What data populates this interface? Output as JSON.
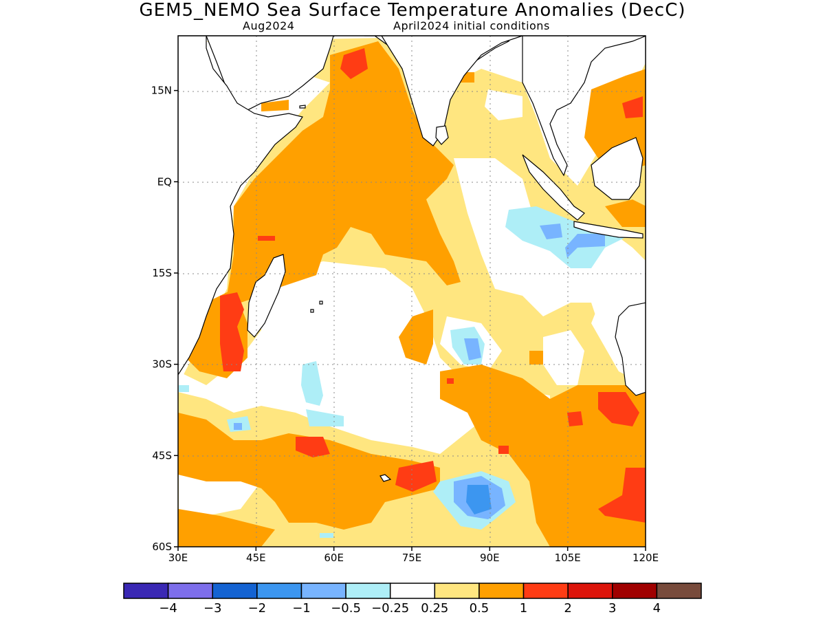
{
  "title": "GEM5_NEMO Sea Surface Temperature Anomalies (DecC)",
  "subtitle_left": "Aug2024",
  "subtitle_right": "April2024 initial conditions",
  "map": {
    "lon_range": [
      30,
      120
    ],
    "lat_range": [
      -60,
      24
    ],
    "lat_ticks": [
      {
        "value": 15,
        "label": "15N"
      },
      {
        "value": 0,
        "label": "EQ"
      },
      {
        "value": -15,
        "label": "15S"
      },
      {
        "value": -30,
        "label": "30S"
      },
      {
        "value": -45,
        "label": "45S"
      },
      {
        "value": -60,
        "label": "60S"
      }
    ],
    "lon_ticks": [
      {
        "value": 30,
        "label": "30E"
      },
      {
        "value": 45,
        "label": "45E"
      },
      {
        "value": 60,
        "label": "60E"
      },
      {
        "value": 75,
        "label": "75E"
      },
      {
        "value": 90,
        "label": "90E"
      },
      {
        "value": 105,
        "label": "105E"
      },
      {
        "value": 120,
        "label": "120E"
      }
    ],
    "grid": "dotted",
    "colors": {
      "land_fill": "#ffffff",
      "coast": "#000000",
      "pale_yellow": "#ffe680",
      "orange": "#ffa000",
      "red_orange": "#ff3c14",
      "light_blue": "#aeeef7",
      "blue": "#78b4ff",
      "mid_blue": "#3c96f0"
    }
  },
  "colorbar": {
    "colors": [
      "#3a28b4",
      "#7d6eeb",
      "#1463d2",
      "#3c96f0",
      "#78b4ff",
      "#aeeef7",
      "#ffffff",
      "#ffe680",
      "#ffa000",
      "#ff3c14",
      "#dc140a",
      "#a00000",
      "#784b3c"
    ],
    "labels": [
      "−4",
      "−3",
      "−2",
      "−1",
      "−0.5",
      "−0.25",
      "0.25",
      "0.5",
      "1",
      "2",
      "3",
      "4"
    ]
  }
}
